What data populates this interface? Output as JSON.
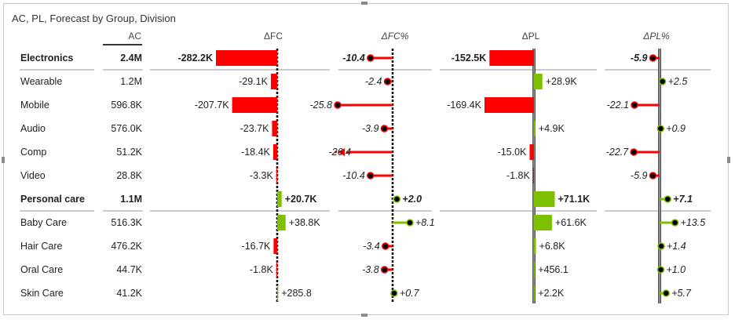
{
  "title": "AC, PL, Forecast by Group, Division",
  "colors": {
    "negative": "#ff0000",
    "positive": "#7dc000",
    "text": "#222222",
    "axis": "#000000",
    "pl_axis": "#555555",
    "separator": "#999999"
  },
  "chart_data": {
    "type": "table",
    "columns": [
      "AC",
      "ΔFC",
      "ΔFC%",
      "ΔPL",
      "ΔPL%"
    ],
    "rows": [
      {
        "name": "Electronics",
        "bold": true,
        "ac": "2.4M",
        "dfc": -282.2,
        "dfc_label": "-282.2K",
        "dfcp": -10.4,
        "dfcp_label": "-10.4",
        "dpl": -152.5,
        "dpl_label": "-152.5K",
        "dplp": -5.9,
        "dplp_label": "-5.9"
      },
      {
        "name": "Wearable",
        "bold": false,
        "ac": "1.2M",
        "dfc": -29.1,
        "dfc_label": "-29.1K",
        "dfcp": -2.4,
        "dfcp_label": "-2.4",
        "dpl": 28.9,
        "dpl_label": "+28.9K",
        "dplp": 2.5,
        "dplp_label": "+2.5"
      },
      {
        "name": "Mobile",
        "bold": false,
        "ac": "596.8K",
        "dfc": -207.7,
        "dfc_label": "-207.7K",
        "dfcp": -25.8,
        "dfcp_label": "-25.8",
        "dpl": -169.4,
        "dpl_label": "-169.4K",
        "dplp": -22.1,
        "dplp_label": "-22.1"
      },
      {
        "name": "Audio",
        "bold": false,
        "ac": "576.0K",
        "dfc": -23.7,
        "dfc_label": "-23.7K",
        "dfcp": -3.9,
        "dfcp_label": "-3.9",
        "dpl": 4.9,
        "dpl_label": "+4.9K",
        "dplp": 0.9,
        "dplp_label": "+0.9"
      },
      {
        "name": "Comp",
        "bold": false,
        "ac": "51.2K",
        "dfc": -18.4,
        "dfc_label": "-18.4K",
        "dfcp": -26.4,
        "dfcp_label": "-26.4",
        "dpl": -15.0,
        "dpl_label": "-15.0K",
        "dplp": -22.7,
        "dplp_label": "-22.7"
      },
      {
        "name": "Video",
        "bold": false,
        "ac": "28.8K",
        "dfc": -3.3,
        "dfc_label": "-3.3K",
        "dfcp": -10.4,
        "dfcp_label": "-10.4",
        "dpl": -1.8,
        "dpl_label": "-1.8K",
        "dplp": -5.9,
        "dplp_label": "-5.9"
      },
      {
        "name": "Personal care",
        "bold": true,
        "ac": "1.1M",
        "dfc": 20.7,
        "dfc_label": "+20.7K",
        "dfcp": 2.0,
        "dfcp_label": "+2.0",
        "dpl": 71.1,
        "dpl_label": "+71.1K",
        "dplp": 7.1,
        "dplp_label": "+7.1"
      },
      {
        "name": "Baby Care",
        "bold": false,
        "ac": "516.3K",
        "dfc": 38.8,
        "dfc_label": "+38.8K",
        "dfcp": 8.1,
        "dfcp_label": "+8.1",
        "dpl": 61.6,
        "dpl_label": "+61.6K",
        "dplp": 13.5,
        "dplp_label": "+13.5"
      },
      {
        "name": "Hair Care",
        "bold": false,
        "ac": "476.2K",
        "dfc": -16.7,
        "dfc_label": "-16.7K",
        "dfcp": -3.4,
        "dfcp_label": "-3.4",
        "dpl": 6.8,
        "dpl_label": "+6.8K",
        "dplp": 1.4,
        "dplp_label": "+1.4"
      },
      {
        "name": "Oral Care",
        "bold": false,
        "ac": "44.7K",
        "dfc": -1.8,
        "dfc_label": "-1.8K",
        "dfcp": -3.8,
        "dfcp_label": "-3.8",
        "dpl": 0.4561,
        "dpl_label": "+456.1",
        "dplp": 1.0,
        "dplp_label": "+1.0"
      },
      {
        "name": "Skin Care",
        "bold": false,
        "ac": "41.2K",
        "dfc": 0.2858,
        "dfc_label": "+285.8",
        "dfcp": 0.7,
        "dfcp_label": "+0.7",
        "dpl": 2.2,
        "dpl_label": "+2.2K",
        "dplp": 5.7,
        "dplp_label": "+5.7"
      }
    ]
  }
}
